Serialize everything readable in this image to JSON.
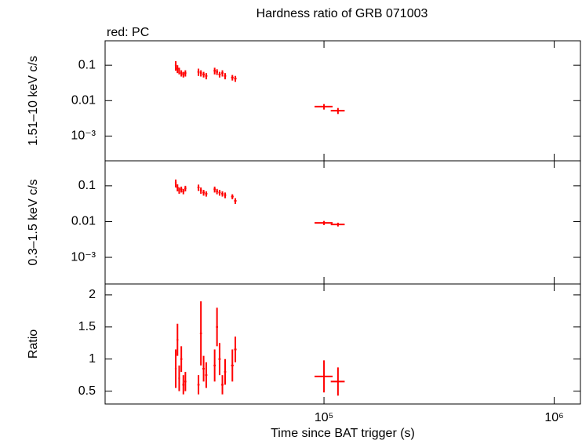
{
  "chart_data": [
    {
      "type": "scatter",
      "title": "Hardness ratio of GRB 071003",
      "annotation": "red: PC",
      "y_label": "1.51–10 keV c/s",
      "xlog": true,
      "ylog": true,
      "xlim": [
        11200,
        1300000
      ],
      "ylim": [
        0.0002,
        0.49
      ],
      "yticks": [
        0.1,
        0.01,
        {
          "value": 0.001,
          "label": "10⁻³"
        }
      ],
      "series": [
        {
          "name": "PC",
          "color": "#ff0000",
          "x": [
            22700,
            23100,
            23500,
            24000,
            24500,
            25000,
            28500,
            29200,
            30000,
            30800,
            33500,
            34300,
            35200,
            36200,
            37200,
            40000,
            41200,
            100000,
            115000
          ],
          "xerr": [
            200,
            200,
            200,
            250,
            250,
            250,
            300,
            300,
            350,
            350,
            350,
            350,
            400,
            400,
            400,
            500,
            500,
            9000,
            8000
          ],
          "values": [
            0.1,
            0.08,
            0.07,
            0.06,
            0.055,
            0.06,
            0.065,
            0.06,
            0.055,
            0.05,
            0.07,
            0.065,
            0.055,
            0.06,
            0.05,
            0.045,
            0.042,
            0.0068,
            0.0052
          ],
          "yerr": [
            0.03,
            0.02,
            0.015,
            0.012,
            0.01,
            0.012,
            0.015,
            0.012,
            0.01,
            0.01,
            0.015,
            0.012,
            0.01,
            0.012,
            0.01,
            0.008,
            0.008,
            0.0012,
            0.001
          ]
        }
      ]
    },
    {
      "type": "scatter",
      "y_label": "0.3–1.5 keV c/s",
      "xlog": true,
      "ylog": true,
      "xlim": [
        11200,
        1300000
      ],
      "ylim": [
        0.00018,
        0.5
      ],
      "yticks": [
        0.1,
        0.01,
        {
          "value": 0.001,
          "label": "10⁻³"
        }
      ],
      "series": [
        {
          "name": "PC",
          "color": "#ff0000",
          "x": [
            22700,
            23100,
            23500,
            24000,
            24500,
            25000,
            28500,
            29200,
            30000,
            30800,
            33500,
            34300,
            35200,
            36200,
            37200,
            40000,
            41200,
            100000,
            115000
          ],
          "xerr": [
            200,
            200,
            200,
            250,
            250,
            250,
            300,
            300,
            350,
            350,
            350,
            350,
            400,
            400,
            400,
            500,
            500,
            9000,
            8000
          ],
          "values": [
            0.12,
            0.09,
            0.075,
            0.08,
            0.07,
            0.085,
            0.09,
            0.075,
            0.065,
            0.06,
            0.08,
            0.07,
            0.065,
            0.06,
            0.055,
            0.05,
            0.038,
            0.0092,
            0.0083
          ],
          "yerr": [
            0.03,
            0.02,
            0.015,
            0.015,
            0.012,
            0.015,
            0.018,
            0.015,
            0.012,
            0.01,
            0.015,
            0.012,
            0.012,
            0.01,
            0.01,
            0.008,
            0.007,
            0.0012,
            0.001
          ]
        }
      ]
    },
    {
      "type": "scatter",
      "y_label": "Ratio",
      "x_label": "Time since BAT trigger (s)",
      "xlog": true,
      "ylog": false,
      "xlim": [
        11200,
        1300000
      ],
      "ylim": [
        0.3,
        2.17
      ],
      "xticks": [
        {
          "value": 100000,
          "label": "10⁵"
        },
        {
          "value": 1000000,
          "label": "10⁶"
        }
      ],
      "yticks": [
        2,
        1.5,
        1,
        0.5
      ],
      "series": [
        {
          "name": "PC",
          "color": "#ff0000",
          "x": [
            22700,
            23100,
            23500,
            24000,
            24500,
            25000,
            28500,
            29200,
            30000,
            30800,
            33500,
            34300,
            35200,
            36200,
            37200,
            40000,
            41200,
            100000,
            115000
          ],
          "xerr": [
            200,
            200,
            200,
            250,
            250,
            250,
            300,
            300,
            350,
            350,
            350,
            350,
            400,
            400,
            400,
            500,
            500,
            9000,
            8000
          ],
          "values": [
            0.85,
            1.3,
            0.7,
            1.0,
            0.6,
            0.65,
            0.6,
            1.4,
            0.85,
            0.75,
            0.9,
            1.5,
            1.0,
            0.6,
            0.8,
            0.9,
            1.15,
            0.73,
            0.65
          ],
          "yerr": [
            0.3,
            0.25,
            0.2,
            0.2,
            0.15,
            0.15,
            0.15,
            0.5,
            0.2,
            0.2,
            0.25,
            0.3,
            0.25,
            0.15,
            0.2,
            0.25,
            0.2,
            0.25,
            0.22
          ]
        }
      ]
    }
  ]
}
